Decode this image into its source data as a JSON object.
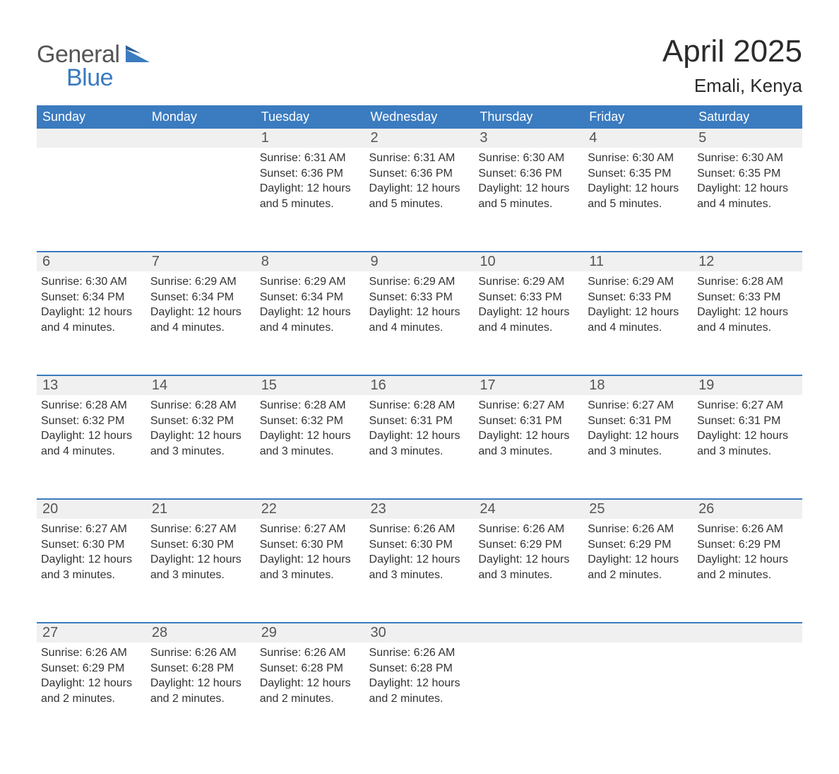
{
  "logo": {
    "text1": "General",
    "text2": "Blue",
    "color1": "#555555",
    "color2": "#3b7bbf"
  },
  "title": "April 2025",
  "location": "Emali, Kenya",
  "header_bg": "#3b7bbf",
  "header_fg": "#ffffff",
  "daynum_bg": "#f0f0f0",
  "week_border": "#3b7bbf",
  "columns": [
    "Sunday",
    "Monday",
    "Tuesday",
    "Wednesday",
    "Thursday",
    "Friday",
    "Saturday"
  ],
  "weeks": [
    [
      null,
      null,
      {
        "d": "1",
        "sr": "6:31 AM",
        "ss": "6:36 PM",
        "dl": "12 hours and 5 minutes."
      },
      {
        "d": "2",
        "sr": "6:31 AM",
        "ss": "6:36 PM",
        "dl": "12 hours and 5 minutes."
      },
      {
        "d": "3",
        "sr": "6:30 AM",
        "ss": "6:36 PM",
        "dl": "12 hours and 5 minutes."
      },
      {
        "d": "4",
        "sr": "6:30 AM",
        "ss": "6:35 PM",
        "dl": "12 hours and 5 minutes."
      },
      {
        "d": "5",
        "sr": "6:30 AM",
        "ss": "6:35 PM",
        "dl": "12 hours and 4 minutes."
      }
    ],
    [
      {
        "d": "6",
        "sr": "6:30 AM",
        "ss": "6:34 PM",
        "dl": "12 hours and 4 minutes."
      },
      {
        "d": "7",
        "sr": "6:29 AM",
        "ss": "6:34 PM",
        "dl": "12 hours and 4 minutes."
      },
      {
        "d": "8",
        "sr": "6:29 AM",
        "ss": "6:34 PM",
        "dl": "12 hours and 4 minutes."
      },
      {
        "d": "9",
        "sr": "6:29 AM",
        "ss": "6:33 PM",
        "dl": "12 hours and 4 minutes."
      },
      {
        "d": "10",
        "sr": "6:29 AM",
        "ss": "6:33 PM",
        "dl": "12 hours and 4 minutes."
      },
      {
        "d": "11",
        "sr": "6:29 AM",
        "ss": "6:33 PM",
        "dl": "12 hours and 4 minutes."
      },
      {
        "d": "12",
        "sr": "6:28 AM",
        "ss": "6:33 PM",
        "dl": "12 hours and 4 minutes."
      }
    ],
    [
      {
        "d": "13",
        "sr": "6:28 AM",
        "ss": "6:32 PM",
        "dl": "12 hours and 4 minutes."
      },
      {
        "d": "14",
        "sr": "6:28 AM",
        "ss": "6:32 PM",
        "dl": "12 hours and 3 minutes."
      },
      {
        "d": "15",
        "sr": "6:28 AM",
        "ss": "6:32 PM",
        "dl": "12 hours and 3 minutes."
      },
      {
        "d": "16",
        "sr": "6:28 AM",
        "ss": "6:31 PM",
        "dl": "12 hours and 3 minutes."
      },
      {
        "d": "17",
        "sr": "6:27 AM",
        "ss": "6:31 PM",
        "dl": "12 hours and 3 minutes."
      },
      {
        "d": "18",
        "sr": "6:27 AM",
        "ss": "6:31 PM",
        "dl": "12 hours and 3 minutes."
      },
      {
        "d": "19",
        "sr": "6:27 AM",
        "ss": "6:31 PM",
        "dl": "12 hours and 3 minutes."
      }
    ],
    [
      {
        "d": "20",
        "sr": "6:27 AM",
        "ss": "6:30 PM",
        "dl": "12 hours and 3 minutes."
      },
      {
        "d": "21",
        "sr": "6:27 AM",
        "ss": "6:30 PM",
        "dl": "12 hours and 3 minutes."
      },
      {
        "d": "22",
        "sr": "6:27 AM",
        "ss": "6:30 PM",
        "dl": "12 hours and 3 minutes."
      },
      {
        "d": "23",
        "sr": "6:26 AM",
        "ss": "6:30 PM",
        "dl": "12 hours and 3 minutes."
      },
      {
        "d": "24",
        "sr": "6:26 AM",
        "ss": "6:29 PM",
        "dl": "12 hours and 3 minutes."
      },
      {
        "d": "25",
        "sr": "6:26 AM",
        "ss": "6:29 PM",
        "dl": "12 hours and 2 minutes."
      },
      {
        "d": "26",
        "sr": "6:26 AM",
        "ss": "6:29 PM",
        "dl": "12 hours and 2 minutes."
      }
    ],
    [
      {
        "d": "27",
        "sr": "6:26 AM",
        "ss": "6:29 PM",
        "dl": "12 hours and 2 minutes."
      },
      {
        "d": "28",
        "sr": "6:26 AM",
        "ss": "6:28 PM",
        "dl": "12 hours and 2 minutes."
      },
      {
        "d": "29",
        "sr": "6:26 AM",
        "ss": "6:28 PM",
        "dl": "12 hours and 2 minutes."
      },
      {
        "d": "30",
        "sr": "6:26 AM",
        "ss": "6:28 PM",
        "dl": "12 hours and 2 minutes."
      },
      null,
      null,
      null
    ]
  ],
  "labels": {
    "sunrise": "Sunrise: ",
    "sunset": "Sunset: ",
    "daylight": "Daylight: "
  }
}
